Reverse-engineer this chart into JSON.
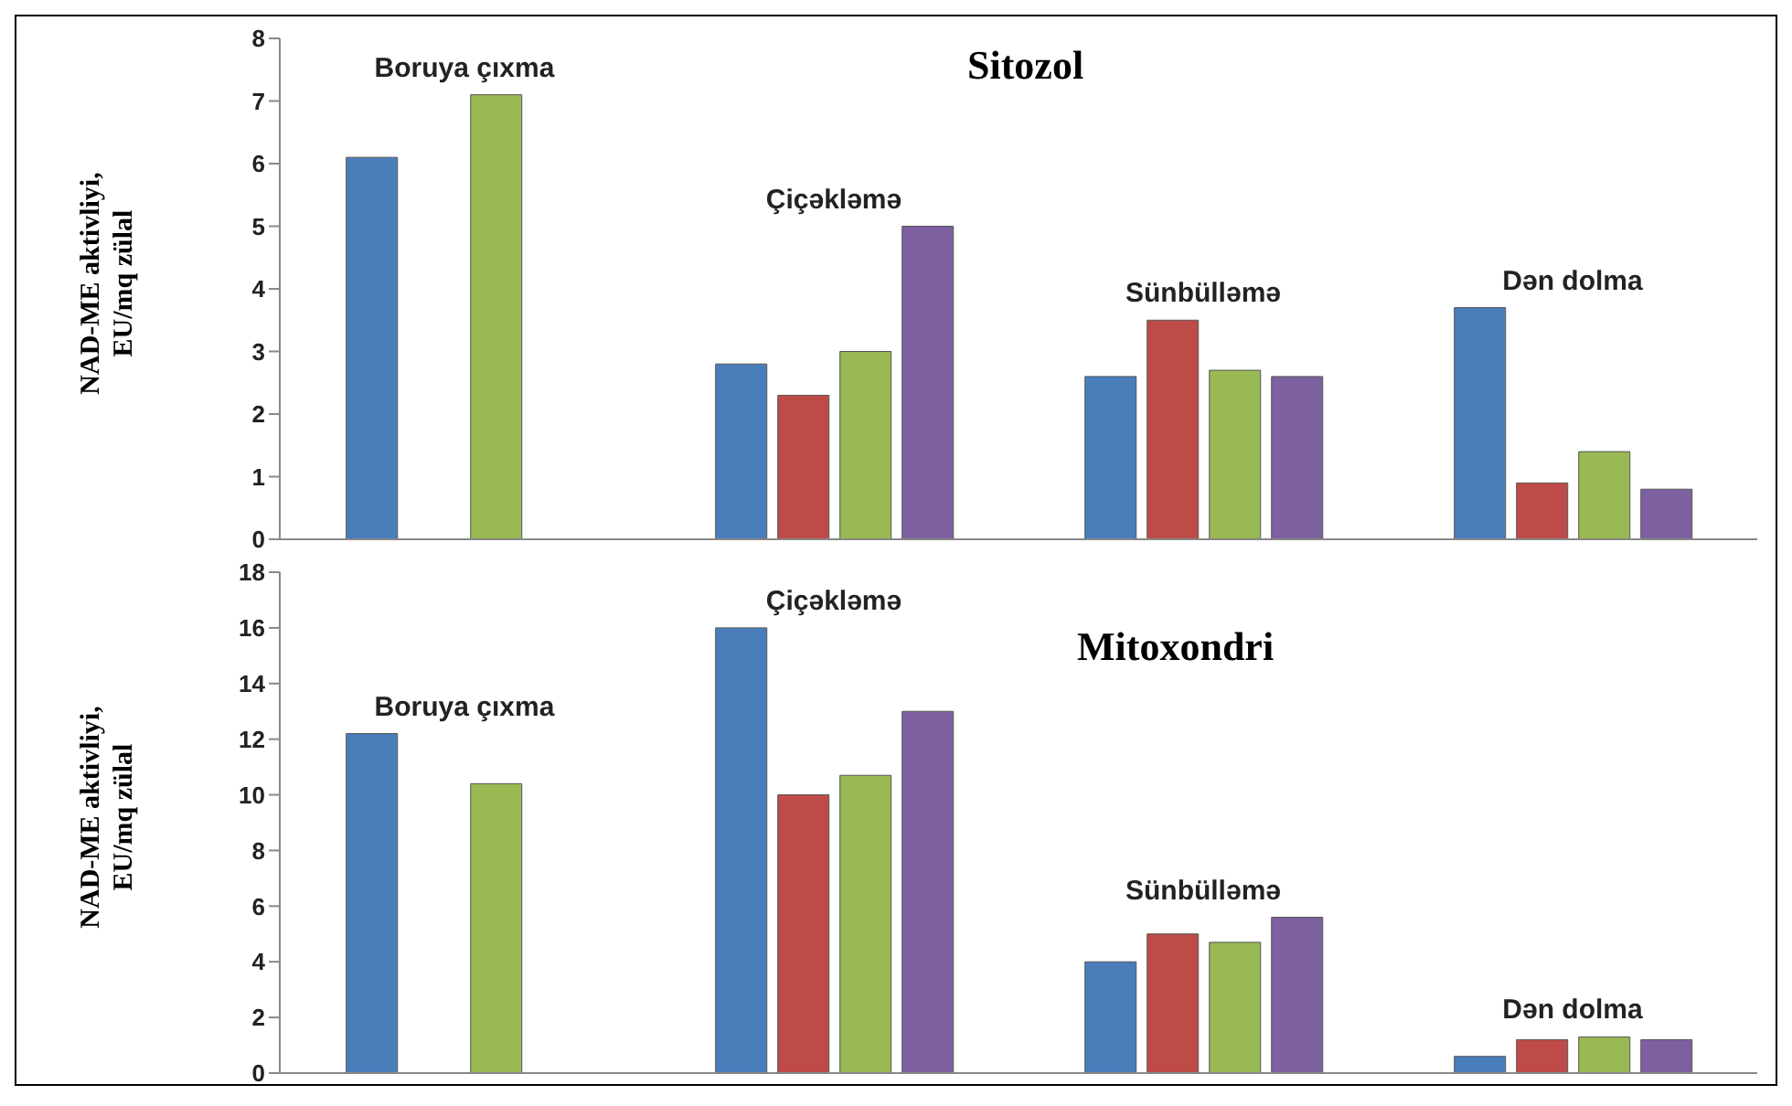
{
  "chart_data": [
    {
      "type": "bar",
      "title": "Sitozol",
      "ylabel": "NAD-ME aktivliyi, EU/mq zülal",
      "categories": [
        "Boruya çıxma",
        "Çiçəkləmə",
        "Sünbülləmə",
        "Dən dolma"
      ],
      "series": [
        {
          "color": "#4a7ebb",
          "values": [
            6.1,
            2.8,
            2.6,
            3.7
          ]
        },
        {
          "color": "#be4b48",
          "values": [
            null,
            2.3,
            3.5,
            0.9
          ]
        },
        {
          "color": "#98b954",
          "values": [
            7.1,
            3.0,
            2.7,
            1.4
          ]
        },
        {
          "color": "#7d60a0",
          "values": [
            null,
            5.0,
            2.6,
            0.8
          ]
        }
      ],
      "ylim": [
        0,
        8
      ],
      "yticks": [
        0,
        1,
        2,
        3,
        4,
        5,
        6,
        7,
        8
      ],
      "grid": false,
      "legend": false
    },
    {
      "type": "bar",
      "title": "Mitoxondri",
      "ylabel": "NAD-ME aktivliyi, EU/mq zülal",
      "categories": [
        "Boruya çıxma",
        "Çiçəkləmə",
        "Sünbülləmə",
        "Dən dolma"
      ],
      "series": [
        {
          "color": "#4a7ebb",
          "values": [
            12.2,
            16.0,
            4.0,
            0.6
          ]
        },
        {
          "color": "#be4b48",
          "values": [
            null,
            10.0,
            5.0,
            1.2
          ]
        },
        {
          "color": "#98b954",
          "values": [
            10.4,
            10.7,
            4.7,
            1.3
          ]
        },
        {
          "color": "#7d60a0",
          "values": [
            null,
            13.0,
            5.6,
            1.2
          ]
        }
      ],
      "ylim": [
        0,
        18
      ],
      "yticks": [
        0,
        2,
        4,
        6,
        8,
        10,
        12,
        14,
        16,
        18
      ],
      "grid": false,
      "legend": false
    }
  ]
}
